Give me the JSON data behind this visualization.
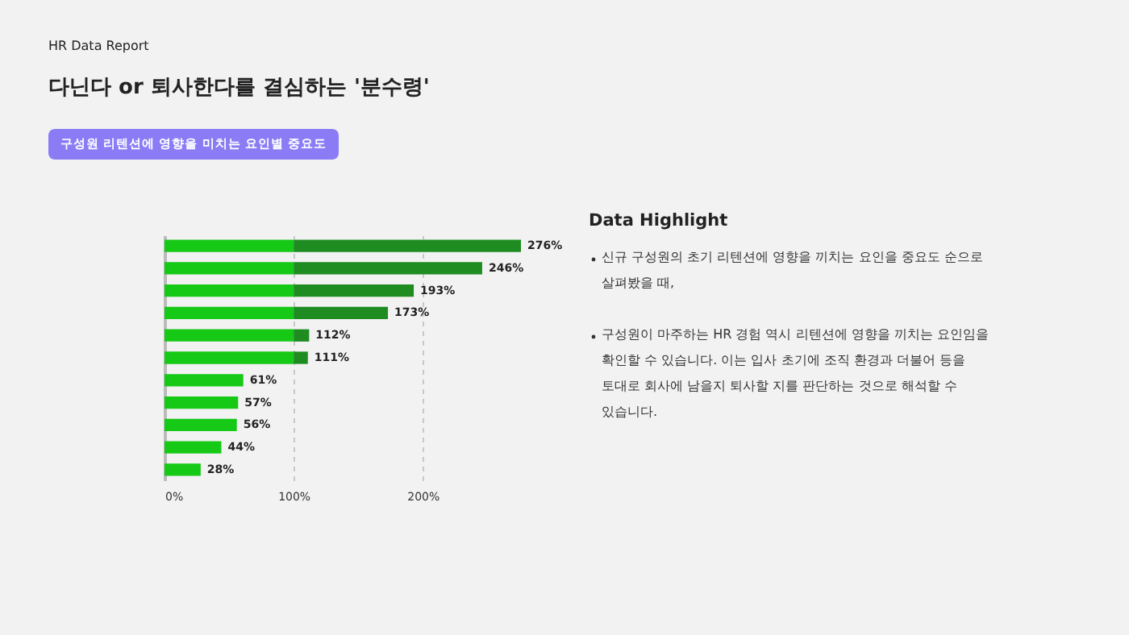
{
  "chart_data": {
    "type": "bar",
    "orientation": "horizontal",
    "stacked": true,
    "title": "다닌다 or 퇴사한다를 결심하는 '분수령'",
    "subtitle": "구성원 리텐션에 영향을 미치는 요인별 중요도",
    "categories": [
      null,
      null,
      null,
      null,
      null,
      null,
      null,
      null,
      null,
      null,
      null
    ],
    "series": [
      {
        "color": "#16c916",
        "values": [
          100,
          100,
          100,
          100,
          100,
          100,
          61,
          57,
          56,
          44,
          28
        ]
      },
      {
        "color": "#1f8c22",
        "values": [
          176,
          146,
          93,
          73,
          12,
          11,
          0,
          0,
          0,
          0,
          0
        ]
      }
    ],
    "totals": [
      "276%",
      "246%",
      "193%",
      "173%",
      "112%",
      "111%",
      "61%",
      "57%",
      "56%",
      "44%",
      "28%"
    ],
    "xlim": [
      0,
      276
    ],
    "xticks": [
      {
        "value": 0,
        "label": "0%"
      },
      {
        "value": 100,
        "label": "100%"
      },
      {
        "value": 200,
        "label": "200%"
      }
    ],
    "grid": "x",
    "legend": false,
    "annotations": [
      "HR Data Report",
      "Data Highlight",
      "신규 구성원의 초기 리텐션에 영향을 끼치는 요인을 중요도 순으로 살펴봤을 때,",
      "구성원이 마주하는 HR 경험 역시 리텐션에 영향을 끼치는 요인임을 확인할 수 있습니다. 이는 입사 초기에 조직 환경과 더불어 등을 토대로 회사에 남을지 퇴사할 지를 판단하는 것으로 해석할 수 있습니다."
    ]
  }
}
